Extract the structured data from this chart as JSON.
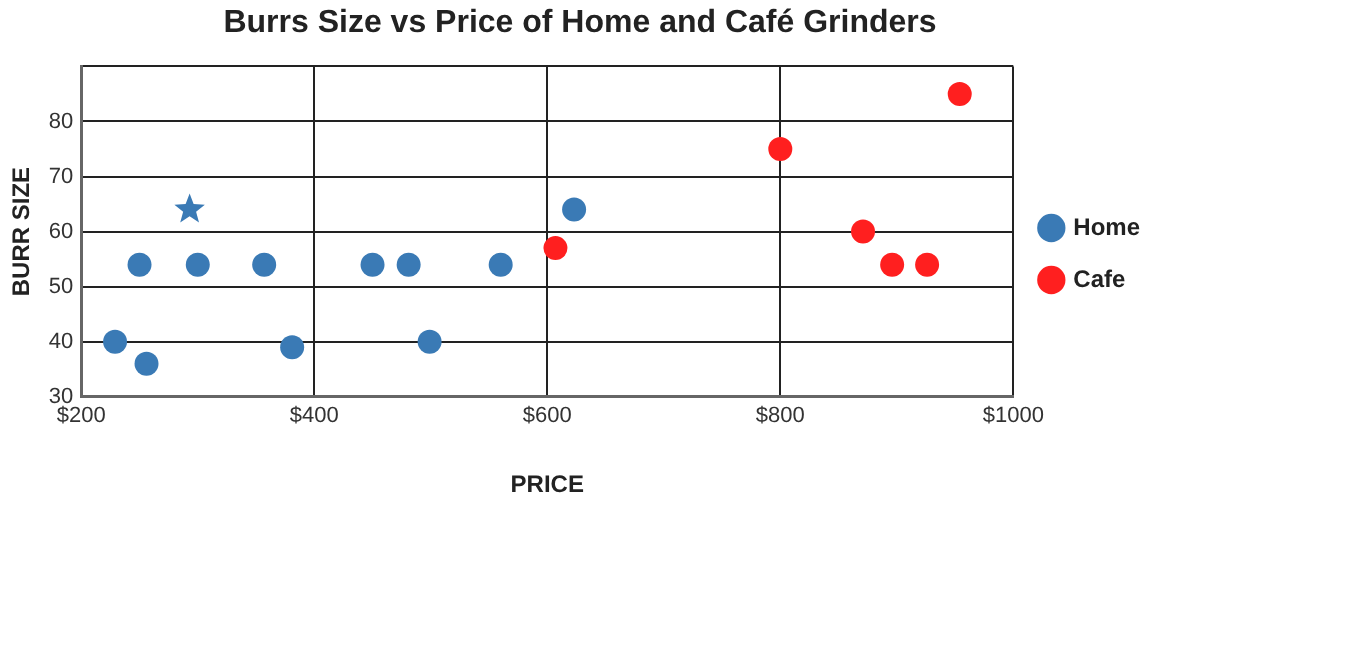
{
  "chart_data": {
    "type": "scatter",
    "title": "Burrs Size vs Price of Home and Café Grinders",
    "xlabel": "PRICE",
    "ylabel": "BURR SIZE",
    "xlim": [
      200,
      1000
    ],
    "xticks": [
      {
        "value": 200,
        "label": "$200"
      },
      {
        "value": 400,
        "label": "$400"
      },
      {
        "value": 600,
        "label": "$600"
      },
      {
        "value": 800,
        "label": "$800"
      },
      {
        "value": 1000,
        "label": "$1000"
      }
    ],
    "ylim": [
      30,
      90
    ],
    "yticks": [
      30,
      40,
      50,
      60,
      70,
      80,
      {
        "value": 90,
        "label": null
      }
    ],
    "grid": true,
    "legend": "right",
    "series": [
      {
        "name": "Home",
        "color": "#3a7ab5",
        "marker": "circle",
        "x": [
          229,
          250,
          256,
          300,
          357,
          381,
          450,
          481,
          499,
          560,
          623
        ],
        "values": [
          40,
          54,
          36,
          54,
          54,
          39,
          54,
          54,
          40,
          54,
          64
        ]
      },
      {
        "name": "Cafe",
        "color": "#ff1f1f",
        "marker": "circle",
        "x": [
          607,
          800,
          871,
          896,
          926,
          954
        ],
        "values": [
          57,
          75,
          60,
          54,
          54,
          85
        ]
      },
      {
        "color": "#3a7ab5",
        "marker": "star",
        "x": [
          293
        ],
        "values": [
          64
        ]
      }
    ]
  }
}
